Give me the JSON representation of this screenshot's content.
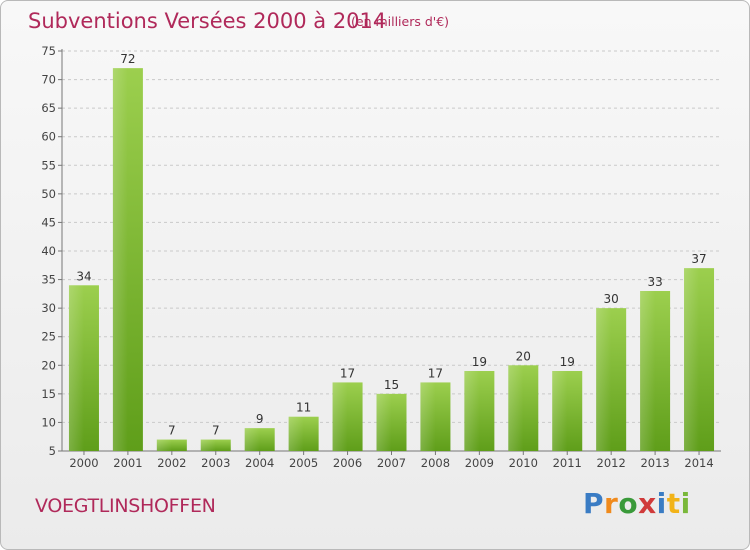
{
  "header": {
    "title": "Subventions Versées 2000 à 2014",
    "unit": "(en milliers d'€)"
  },
  "footer": {
    "commune": "VOEGTLINSHOFFEN",
    "brand_letters": [
      {
        "ch": "P",
        "color": "#3a7cc4"
      },
      {
        "ch": "r",
        "color": "#f08a1c"
      },
      {
        "ch": "o",
        "color": "#3a9a3a"
      },
      {
        "ch": "x",
        "color": "#d03a3a"
      },
      {
        "ch": "i",
        "color": "#3a7cc4"
      },
      {
        "ch": "t",
        "color": "#f2b318"
      },
      {
        "ch": "i",
        "color": "#7ab83a"
      }
    ]
  },
  "chart_data": {
    "type": "bar",
    "categories": [
      "2000",
      "2001",
      "2002",
      "2003",
      "2004",
      "2005",
      "2006",
      "2007",
      "2008",
      "2009",
      "2010",
      "2011",
      "2012",
      "2013",
      "2014"
    ],
    "values": [
      34,
      72,
      7,
      7,
      9,
      11,
      17,
      15,
      17,
      19,
      20,
      19,
      30,
      33,
      37
    ],
    "ylim": [
      5,
      75
    ],
    "yticks": [
      5,
      10,
      15,
      20,
      25,
      30,
      35,
      40,
      45,
      50,
      55,
      60,
      65,
      70,
      75
    ],
    "grid": "horizontal dashed",
    "bar_color_top": "#9ccf4e",
    "bar_color_bottom": "#5f9e1a"
  }
}
